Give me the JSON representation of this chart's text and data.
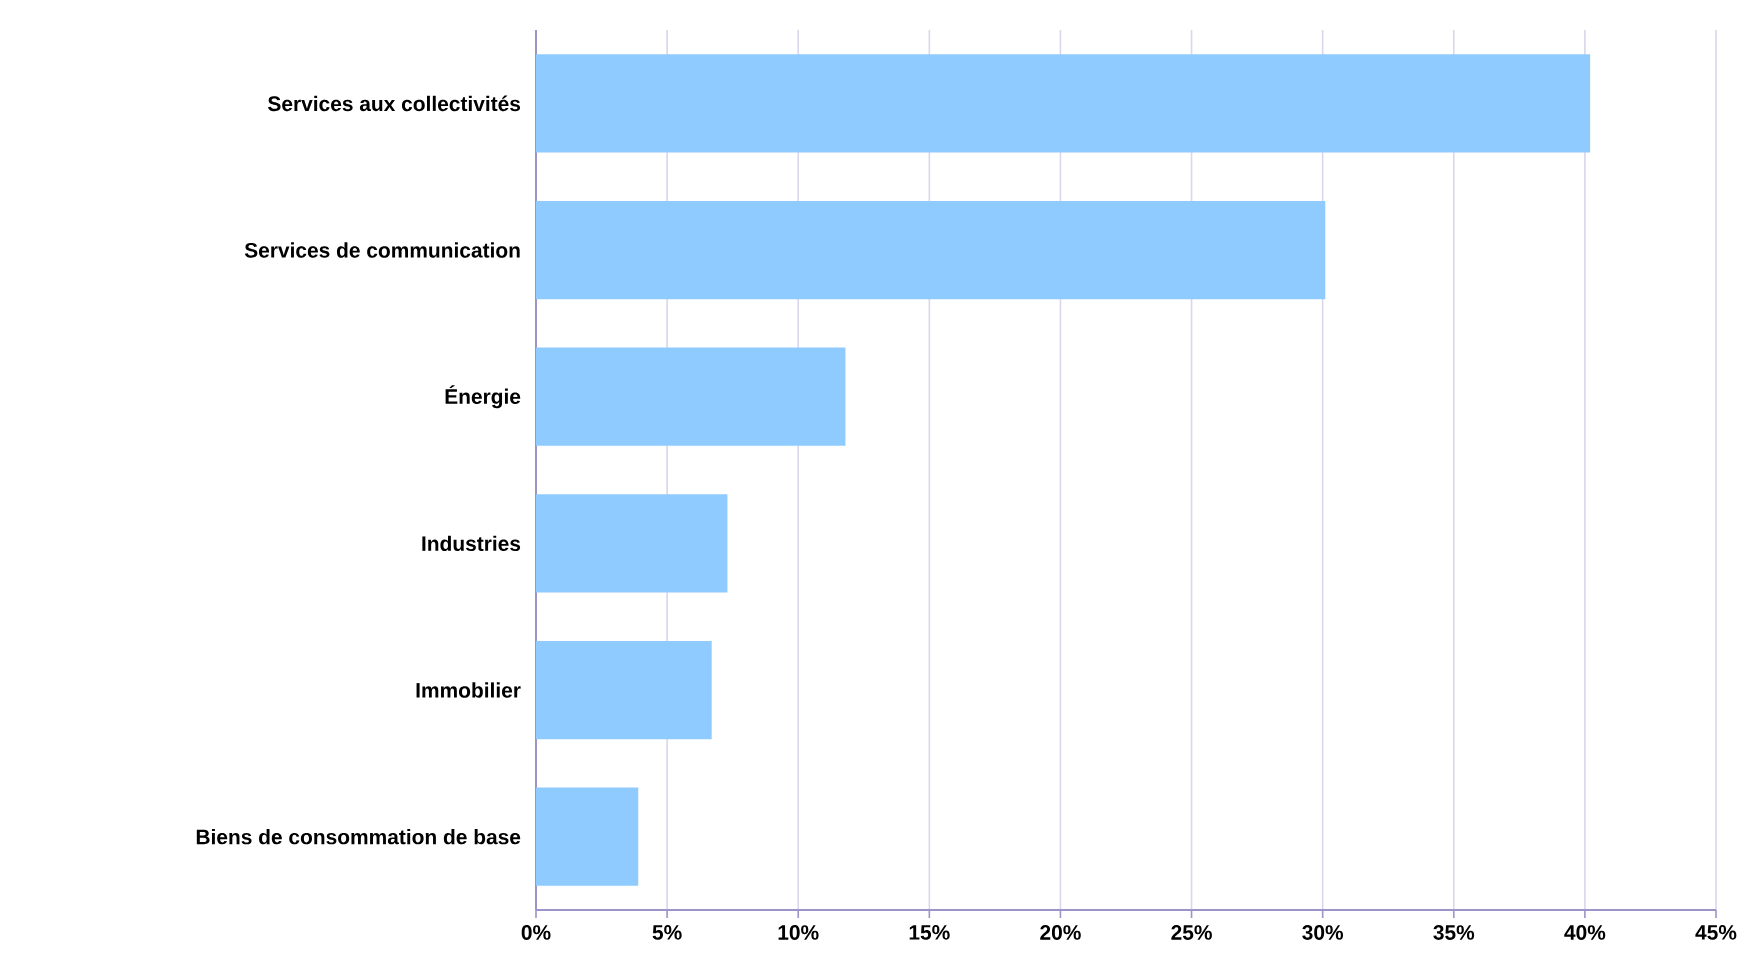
{
  "chart_data": {
    "type": "bar",
    "orientation": "horizontal",
    "categories": [
      "Services aux collectivités",
      "Services de communication",
      "Énergie",
      "Industries",
      "Immobilier",
      "Biens de consommation de base"
    ],
    "values": [
      40.2,
      30.1,
      11.8,
      7.3,
      6.7,
      3.9
    ],
    "color": "#8fcbff",
    "xlim": [
      0,
      45
    ],
    "xticks": [
      {
        "value": 0,
        "label": "0%"
      },
      {
        "value": 5,
        "label": "5%"
      },
      {
        "value": 10,
        "label": "10%"
      },
      {
        "value": 15,
        "label": "15%"
      },
      {
        "value": 20,
        "label": "20%"
      },
      {
        "value": 25,
        "label": "25%"
      },
      {
        "value": 30,
        "label": "30%"
      },
      {
        "value": 35,
        "label": "35%"
      },
      {
        "value": 40,
        "label": "40%"
      },
      {
        "value": 45,
        "label": "45%"
      }
    ],
    "grid": "x"
  }
}
